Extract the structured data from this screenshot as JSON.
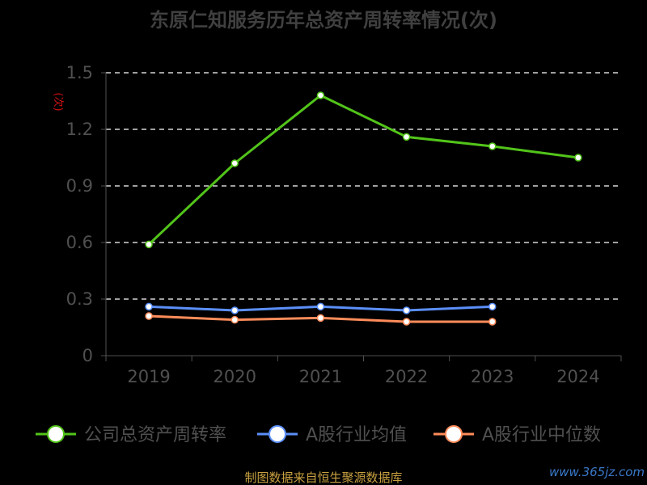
{
  "chart_data": {
    "type": "line",
    "title": "东原仁知服务历年总资产周转率情况(次)",
    "ylabel": "(次)",
    "xlabel": "",
    "categories": [
      "2019",
      "2020",
      "2021",
      "2022",
      "2023",
      "2024"
    ],
    "ylim": [
      0,
      1.5
    ],
    "yticks": [
      "0",
      "0.3",
      "0.6",
      "0.9",
      "1.2",
      "1.5"
    ],
    "grid": true,
    "legend_position": "bottom",
    "series": [
      {
        "name": "公司总资产周转率",
        "color": "#52c41a",
        "values": [
          0.59,
          1.02,
          1.38,
          1.16,
          1.11,
          1.05
        ]
      },
      {
        "name": "A股行业均值",
        "color": "#5b8ff9",
        "values": [
          0.26,
          0.24,
          0.26,
          0.24,
          0.26,
          null
        ]
      },
      {
        "name": "A股行业中位数",
        "color": "#ff8c5a",
        "values": [
          0.21,
          0.19,
          0.2,
          0.18,
          0.18,
          null
        ]
      }
    ]
  },
  "source": "制图数据来自恒生聚源数据库",
  "watermark": "www.365jz.com"
}
